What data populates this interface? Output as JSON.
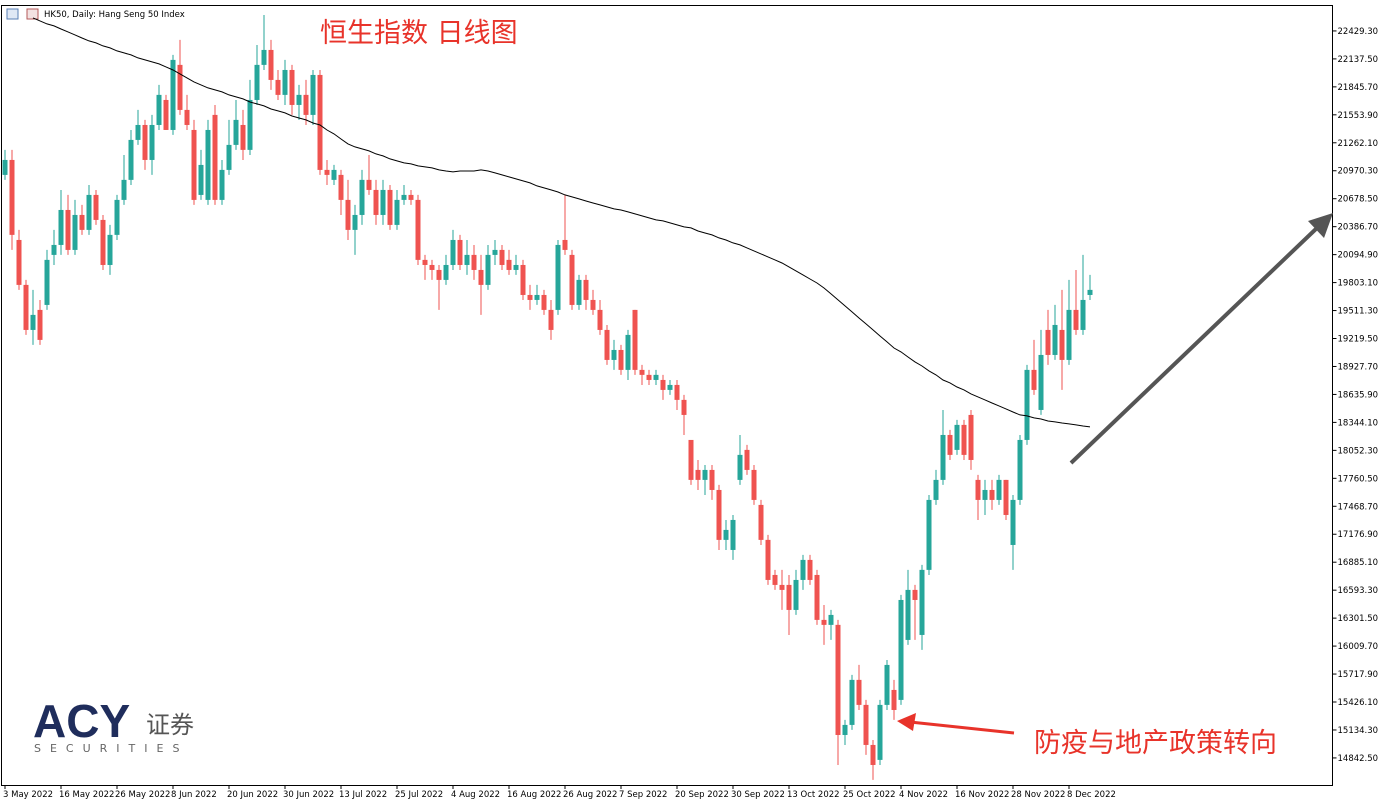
{
  "chart_data": {
    "type": "candlestick",
    "header": "HK50, Daily: Hang Seng 50 Index",
    "title": "恒生指数 日线图",
    "annotation": "防疫与地产政策转向",
    "up_color": "#26a69a",
    "down_color": "#ef5350",
    "categories": [
      "3 May 2022",
      null,
      null,
      null,
      null,
      null,
      null,
      null,
      "16 May 2022",
      null,
      null,
      null,
      null,
      null,
      null,
      null,
      "26 May 2022",
      null,
      null,
      null,
      null,
      null,
      null,
      null,
      "8 Jun 2022",
      null,
      null,
      null,
      null,
      null,
      null,
      null,
      "20 Jun 2022",
      null,
      null,
      null,
      null,
      null,
      null,
      null,
      "30 Jun 2022",
      null,
      null,
      null,
      null,
      null,
      null,
      null,
      "13 Jul 2022",
      null,
      null,
      null,
      null,
      null,
      null,
      null,
      "25 Jul 2022",
      null,
      null,
      null,
      null,
      null,
      null,
      null,
      "4 Aug 2022",
      null,
      null,
      null,
      null,
      null,
      null,
      null,
      "16 Aug 2022",
      null,
      null,
      null,
      null,
      null,
      null,
      null,
      "26 Aug 2022",
      null,
      null,
      null,
      null,
      null,
      null,
      null,
      "7 Sep 2022",
      null,
      null,
      null,
      null,
      null,
      null,
      null,
      "20 Sep 2022",
      null,
      null,
      null,
      null,
      null,
      null,
      null,
      "30 Sep 2022",
      null,
      null,
      null,
      null,
      null,
      null,
      null,
      "13 Oct 2022",
      null,
      null,
      null,
      null,
      null,
      null,
      null,
      "25 Oct 2022",
      null,
      null,
      null,
      null,
      null,
      null,
      null,
      "4 Nov 2022",
      null,
      null,
      null,
      null,
      null,
      null,
      null,
      "16 Nov 2022",
      null,
      null,
      null,
      null,
      null,
      null,
      null,
      "28 Nov 2022",
      null,
      null,
      null,
      null,
      null,
      null,
      null,
      "8 Dec 2022",
      null,
      null,
      null
    ],
    "open": [
      20927,
      21083,
      20248,
      19779,
      19309,
      19518,
      19570,
      20092,
      20196,
      20561,
      20144,
      20509,
      20353,
      20718,
      20457,
      19987,
      20301,
      20666,
      20875,
      21292,
      21448,
      21083,
      21448,
      21709,
      21396,
      22075,
      21605,
      21396,
      20718,
      20666,
      21553,
      20666,
      20979,
      21240,
      21448,
      21188,
      21709,
      22075,
      22231,
      21918,
      21762,
      22022,
      21657,
      21762,
      21553,
      21970,
      20979,
      20875,
      20927,
      20666,
      20353,
      20509,
      20875,
      20770,
      20509,
      20770,
      20405,
      20666,
      20718,
      20666,
      20040,
      19987,
      19935,
      19831,
      19987,
      20248,
      19987,
      20092,
      19935,
      19779,
      20092,
      20144,
      20040,
      19935,
      19987,
      19674,
      19622,
      19674,
      19518,
      19518,
      20248,
      20092,
      19570,
      19831,
      19622,
      19518,
      19309,
      18996,
      19100,
      18892,
      19518,
      18892,
      18840,
      18787,
      18787,
      18683,
      18735,
      18579,
      18161,
      17848,
      17744,
      17848,
      17639,
      17118,
      17013,
      17744,
      18057,
      17848,
      17483,
      17118,
      16752,
      16648,
      16648,
      16387,
      16700,
      16909,
      16752,
      16283,
      16231,
      16231,
      15082,
      15187,
      15657,
      15396,
      14978,
      14822,
      15396,
      15552,
      15448,
      16074,
      16596,
      16126,
      16805,
      17535,
      17744,
      18213,
      18057,
      18318,
      18422,
      17744,
      17535,
      17639,
      17535,
      17744,
      17065,
      17535,
      18161,
      18892,
      18474,
      19309,
      19048,
      19309,
      18996,
      19518,
      19309,
      19674
    ],
    "high": [
      21188,
      21188,
      20353,
      19831,
      19727,
      19622,
      20144,
      20353,
      20770,
      20718,
      20666,
      20614,
      20822,
      20770,
      20509,
      20405,
      20718,
      21135,
      21396,
      21605,
      21501,
      21553,
      21866,
      21762,
      22179,
      22336,
      21762,
      21501,
      21188,
      21501,
      21657,
      21083,
      21501,
      21709,
      21605,
      21918,
      22283,
      22596,
      22336,
      22022,
      22127,
      22075,
      21866,
      21918,
      22022,
      22022,
      21083,
      21031,
      20979,
      20875,
      20614,
      20979,
      21135,
      20875,
      20875,
      20822,
      20770,
      20822,
      20770,
      20718,
      20092,
      20040,
      19987,
      20092,
      20353,
      20301,
      20248,
      20196,
      20092,
      20196,
      20248,
      20196,
      20144,
      20092,
      20040,
      19779,
      19779,
      19727,
      19622,
      20248,
      20718,
      20144,
      19883,
      19883,
      19727,
      19622,
      19361,
      19205,
      19153,
      19309,
      19518,
      18944,
      18892,
      18892,
      18840,
      18787,
      18787,
      18631,
      18161,
      17952,
      17900,
      17900,
      17692,
      17326,
      17378,
      18213,
      18109,
      17900,
      17535,
      17170,
      16805,
      16805,
      16752,
      16805,
      16961,
      16961,
      16805,
      16439,
      16387,
      16283,
      15239,
      15709,
      15813,
      15448,
      15030,
      15448,
      15865,
      15657,
      16544,
      16805,
      16648,
      16857,
      17587,
      17848,
      18474,
      18266,
      18370,
      18370,
      18474,
      17796,
      17744,
      17744,
      17796,
      17744,
      17587,
      18213,
      18944,
      19205,
      19309,
      19518,
      19570,
      19727,
      19831,
      19935,
      20092,
      19883
    ],
    "low": [
      20875,
      20144,
      19727,
      19257,
      19153,
      19153,
      19518,
      19987,
      20092,
      20092,
      20092,
      20301,
      20301,
      20405,
      19935,
      19883,
      20248,
      20614,
      20822,
      21240,
      20979,
      20927,
      21396,
      21396,
      21344,
      21553,
      21396,
      20614,
      20666,
      20614,
      20614,
      20614,
      20927,
      21188,
      21083,
      21135,
      21657,
      22022,
      21814,
      21709,
      21657,
      21553,
      21501,
      21448,
      21448,
      20927,
      20822,
      20822,
      20509,
      20248,
      20092,
      20405,
      20718,
      20405,
      20405,
      20353,
      20353,
      20614,
      20614,
      19987,
      19831,
      19831,
      19518,
      19779,
      19935,
      19935,
      19883,
      19831,
      19466,
      19727,
      19987,
      19935,
      19883,
      19883,
      19622,
      19518,
      19570,
      19466,
      19205,
      19466,
      20092,
      19518,
      19518,
      19518,
      19466,
      19257,
      18944,
      18892,
      18840,
      18787,
      18840,
      18735,
      18735,
      18735,
      18579,
      18631,
      18474,
      18213,
      17692,
      17639,
      17587,
      17535,
      17013,
      17013,
      16909,
      17692,
      17796,
      17483,
      17065,
      16648,
      16596,
      16387,
      16126,
      16335,
      16596,
      16648,
      16231,
      16022,
      16074,
      14769,
      14978,
      15135,
      15343,
      14874,
      14613,
      14769,
      15343,
      15239,
      15396,
      16022,
      16074,
      15970,
      16752,
      17483,
      17692,
      17952,
      18005,
      17952,
      17848,
      17326,
      17378,
      17431,
      17483,
      17326,
      16805,
      17483,
      18109,
      18631,
      18422,
      18944,
      18996,
      18683,
      18944,
      19257,
      19257,
      19622
    ],
    "close": [
      21083,
      20301,
      19779,
      19309,
      19466,
      19205,
      20040,
      20196,
      20561,
      20144,
      20509,
      20353,
      20718,
      20457,
      19987,
      20301,
      20666,
      20875,
      21292,
      21448,
      21083,
      21448,
      21762,
      21396,
      22127,
      21605,
      21448,
      20666,
      21031,
      21396,
      20666,
      20979,
      21240,
      21501,
      21188,
      21709,
      22075,
      22231,
      21918,
      21762,
      22022,
      21657,
      21762,
      21553,
      21970,
      20979,
      20927,
      20979,
      20666,
      20353,
      20509,
      20875,
      20770,
      20509,
      20770,
      20405,
      20666,
      20718,
      20666,
      20040,
      19987,
      19935,
      19831,
      19987,
      20248,
      19987,
      20092,
      19935,
      19779,
      20092,
      20144,
      19987,
      19935,
      19987,
      19674,
      19622,
      19674,
      19518,
      19309,
      20196,
      20144,
      19570,
      19831,
      19622,
      19518,
      19309,
      18996,
      19100,
      18892,
      19257,
      18892,
      18840,
      18787,
      18840,
      18683,
      18735,
      18579,
      18422,
      17744,
      17744,
      17848,
      17639,
      17118,
      17222,
      17326,
      18005,
      17848,
      17535,
      17118,
      16700,
      16648,
      16596,
      16387,
      16700,
      16909,
      16700,
      16283,
      16231,
      16335,
      15082,
      15187,
      15657,
      15396,
      14978,
      14769,
      15396,
      15813,
      15343,
      16491,
      16596,
      16491,
      16805,
      17535,
      17744,
      18213,
      18005,
      18318,
      18005,
      17952,
      17535,
      17639,
      17535,
      17744,
      17378,
      17535,
      18161,
      18892,
      18683,
      19048,
      19048,
      19361,
      18996,
      19518,
      19309,
      19622,
      19727
    ],
    "moving_average": {
      "color": "#000000",
      "values": [
        null,
        null,
        null,
        null,
        22565,
        22534,
        22503,
        22482,
        22450,
        22419,
        22388,
        22356,
        22325,
        22304,
        22273,
        22252,
        22221,
        22200,
        22179,
        22148,
        22127,
        22106,
        22085,
        22054,
        22022,
        21981,
        21939,
        21897,
        21866,
        21835,
        21814,
        21793,
        21762,
        21741,
        21720,
        21688,
        21668,
        21647,
        21615,
        21595,
        21574,
        21542,
        21521,
        21501,
        21469,
        21448,
        21396,
        21355,
        21302,
        21250,
        21219,
        21198,
        21177,
        21146,
        21125,
        21094,
        21073,
        21052,
        21042,
        21021,
        21010,
        21000,
        20979,
        20968,
        20958,
        20968,
        20968,
        20968,
        20979,
        20968,
        20948,
        20927,
        20906,
        20885,
        20864,
        20843,
        20812,
        20791,
        20770,
        20749,
        20718,
        20697,
        20676,
        20655,
        20634,
        20614,
        20593,
        20572,
        20561,
        20541,
        20520,
        20499,
        20478,
        20457,
        20447,
        20426,
        20405,
        20384,
        20374,
        20342,
        20321,
        20301,
        20269,
        20248,
        20217,
        20196,
        20165,
        20134,
        20102,
        20071,
        20040,
        20008,
        19967,
        19925,
        19883,
        19841,
        19799,
        19747,
        19685,
        19622,
        19560,
        19497,
        19434,
        19372,
        19309,
        19246,
        19184,
        19121,
        19080,
        19027,
        18975,
        18933,
        18881,
        18840,
        18787,
        18756,
        18714,
        18683,
        18641,
        18610,
        18579,
        18547,
        18516,
        18485,
        18453,
        18422,
        18412,
        18391,
        18380,
        18359,
        18349,
        18338,
        18328,
        18318,
        18307,
        18297
      ]
    },
    "ylim": [
      14560,
      22700
    ],
    "yticks": [
      {
        "value": 22429.3,
        "label": "22429.30"
      },
      {
        "value": 22137.5,
        "label": "22137.50"
      },
      {
        "value": 21845.7,
        "label": "21845.70"
      },
      {
        "value": 21553.9,
        "label": "21553.90"
      },
      {
        "value": 21262.1,
        "label": "21262.10"
      },
      {
        "value": 20970.3,
        "label": "20970.30"
      },
      {
        "value": 20678.5,
        "label": "20678.50"
      },
      {
        "value": 20386.7,
        "label": "20386.70"
      },
      {
        "value": 20094.9,
        "label": "20094.90"
      },
      {
        "value": 19803.1,
        "label": "19803.10"
      },
      {
        "value": 19511.3,
        "label": "19511.30"
      },
      {
        "value": 19219.5,
        "label": "19219.50"
      },
      {
        "value": 18927.7,
        "label": "18927.70"
      },
      {
        "value": 18635.9,
        "label": "18635.90"
      },
      {
        "value": 18344.1,
        "label": "18344.10"
      },
      {
        "value": 18052.3,
        "label": "18052.30"
      },
      {
        "value": 17760.5,
        "label": "17760.50"
      },
      {
        "value": 17468.7,
        "label": "17468.70"
      },
      {
        "value": 17176.9,
        "label": "17176.90"
      },
      {
        "value": 16885.1,
        "label": "16885.10"
      },
      {
        "value": 16593.3,
        "label": "16593.30"
      },
      {
        "value": 16301.5,
        "label": "16301.50"
      },
      {
        "value": 16009.7,
        "label": "16009.70"
      },
      {
        "value": 15717.9,
        "label": "15717.90"
      },
      {
        "value": 15426.1,
        "label": "15426.10"
      },
      {
        "value": 15134.3,
        "label": "15134.30"
      },
      {
        "value": 14842.5,
        "label": "14842.50"
      }
    ]
  },
  "logo": {
    "mark": "ACY",
    "text": "证券",
    "subtitle": "SECURITIES"
  }
}
